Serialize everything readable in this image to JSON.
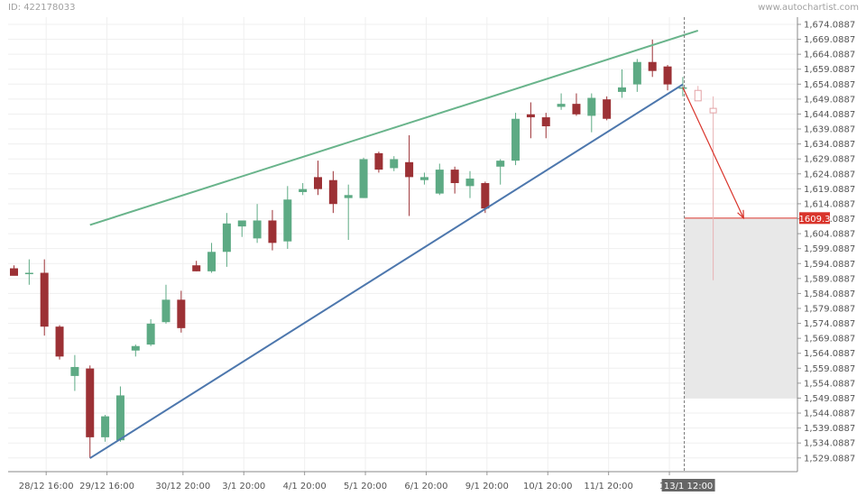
{
  "header": {
    "id_label": "ID: 422178033",
    "site": "www.autochartist.com"
  },
  "colors": {
    "bull": "#5daa84",
    "bear": "#9c3135",
    "resistance": "#69b48b",
    "support": "#4d77ad",
    "forecast": "#d9342b",
    "grid": "#efefef",
    "zone": "#e8e8e8"
  },
  "chart_data": {
    "type": "candlestick",
    "ylim": [
      1524.5,
      1676.5
    ],
    "y_ticks": [
      "1,674.0887",
      "1,669.0887",
      "1,664.0887",
      "1,659.0887",
      "1,654.0887",
      "1,649.0887",
      "1,644.0887",
      "1,639.0887",
      "1,634.0887",
      "1,629.0887",
      "1,624.0887",
      "1,619.0887",
      "1,614.0887",
      "1,609.0887",
      "1,604.0887",
      "1,599.0887",
      "1,594.0887",
      "1,589.0887",
      "1,584.0887",
      "1,579.0887",
      "1,574.0887",
      "1,569.0887",
      "1,564.0887",
      "1,559.0887",
      "1,554.0887",
      "1,549.0887",
      "1,544.0887",
      "1,539.0887",
      "1,534.0887",
      "1,529.0887"
    ],
    "x_ticks": [
      {
        "label": "28/12 16:00",
        "index": 2
      },
      {
        "label": "29/12 16:00",
        "index": 6
      },
      {
        "label": "30/12 20:00",
        "index": 11
      },
      {
        "label": "3/1 20:00",
        "index": 15
      },
      {
        "label": "4/1 20:00",
        "index": 19
      },
      {
        "label": "5/1 20:00",
        "index": 23
      },
      {
        "label": "6/1 20:00",
        "index": 27
      },
      {
        "label": "9/1 20:00",
        "index": 31
      },
      {
        "label": "10/1 20:00",
        "index": 35
      },
      {
        "label": "11/1 20:00",
        "index": 39
      },
      {
        "label": "12/1",
        "index": 43
      }
    ],
    "current_x_label": "13/1 12:00",
    "current_price_label": "1609.3",
    "current_price": 1609.3,
    "candles": [
      {
        "o": 1592.5,
        "h": 1593.5,
        "l": 1590.5,
        "c": 1590.0
      },
      {
        "o": 1591.0,
        "h": 1595.5,
        "l": 1587.0,
        "c": 1591.0
      },
      {
        "o": 1591.0,
        "h": 1595.5,
        "l": 1570.0,
        "c": 1573.0
      },
      {
        "o": 1573.0,
        "h": 1573.5,
        "l": 1562.0,
        "c": 1563.0
      },
      {
        "o": 1556.5,
        "h": 1563.5,
        "l": 1551.5,
        "c": 1559.5
      },
      {
        "o": 1559.0,
        "h": 1560.0,
        "l": 1529.0,
        "c": 1536.0
      },
      {
        "o": 1536.0,
        "h": 1543.5,
        "l": 1534.5,
        "c": 1543.0
      },
      {
        "o": 1535.0,
        "h": 1553.0,
        "l": 1534.5,
        "c": 1550.0
      },
      {
        "o": 1565.0,
        "h": 1567.0,
        "l": 1563.0,
        "c": 1566.5
      },
      {
        "o": 1567.0,
        "h": 1575.5,
        "l": 1566.5,
        "c": 1574.0
      },
      {
        "o": 1574.5,
        "h": 1587.0,
        "l": 1574.0,
        "c": 1582.0
      },
      {
        "o": 1582.0,
        "h": 1585.0,
        "l": 1571.0,
        "c": 1572.5
      },
      {
        "o": 1593.5,
        "h": 1595.0,
        "l": 1591.5,
        "c": 1591.5
      },
      {
        "o": 1591.5,
        "h": 1601.0,
        "l": 1591.0,
        "c": 1598.0
      },
      {
        "o": 1598.0,
        "h": 1611.0,
        "l": 1593.0,
        "c": 1607.5
      },
      {
        "o": 1606.5,
        "h": 1608.0,
        "l": 1603.0,
        "c": 1608.5
      },
      {
        "o": 1602.5,
        "h": 1614.0,
        "l": 1601.0,
        "c": 1608.5
      },
      {
        "o": 1608.5,
        "h": 1612.0,
        "l": 1598.5,
        "c": 1601.0
      },
      {
        "o": 1601.5,
        "h": 1620.0,
        "l": 1599.0,
        "c": 1615.5
      },
      {
        "o": 1618.0,
        "h": 1621.0,
        "l": 1617.0,
        "c": 1619.0
      },
      {
        "o": 1623.0,
        "h": 1628.5,
        "l": 1617.0,
        "c": 1619.0
      },
      {
        "o": 1622.0,
        "h": 1625.0,
        "l": 1611.0,
        "c": 1614.0
      },
      {
        "o": 1616.0,
        "h": 1620.5,
        "l": 1602.0,
        "c": 1617.0
      },
      {
        "o": 1616.0,
        "h": 1629.5,
        "l": 1616.0,
        "c": 1629.0
      },
      {
        "o": 1631.0,
        "h": 1631.5,
        "l": 1624.5,
        "c": 1625.5
      },
      {
        "o": 1626.0,
        "h": 1630.0,
        "l": 1625.0,
        "c": 1629.0
      },
      {
        "o": 1628.0,
        "h": 1637.0,
        "l": 1610.0,
        "c": 1623.0
      },
      {
        "o": 1622.0,
        "h": 1624.5,
        "l": 1620.5,
        "c": 1623.0
      },
      {
        "o": 1617.5,
        "h": 1627.5,
        "l": 1617.0,
        "c": 1625.5
      },
      {
        "o": 1625.5,
        "h": 1626.5,
        "l": 1617.5,
        "c": 1621.0
      },
      {
        "o": 1620.0,
        "h": 1625.0,
        "l": 1616.0,
        "c": 1622.5
      },
      {
        "o": 1621.0,
        "h": 1621.5,
        "l": 1611.0,
        "c": 1612.5
      },
      {
        "o": 1626.5,
        "h": 1629.0,
        "l": 1620.5,
        "c": 1628.5
      },
      {
        "o": 1628.5,
        "h": 1644.5,
        "l": 1627.0,
        "c": 1642.5
      },
      {
        "o": 1644.0,
        "h": 1648.0,
        "l": 1636.0,
        "c": 1643.0
      },
      {
        "o": 1643.0,
        "h": 1644.5,
        "l": 1636.0,
        "c": 1640.0
      },
      {
        "o": 1646.5,
        "h": 1651.0,
        "l": 1645.5,
        "c": 1647.5
      },
      {
        "o": 1647.5,
        "h": 1651.0,
        "l": 1643.5,
        "c": 1644.0
      },
      {
        "o": 1643.5,
        "h": 1651.0,
        "l": 1638.0,
        "c": 1649.5
      },
      {
        "o": 1649.0,
        "h": 1650.0,
        "l": 1642.0,
        "c": 1642.5
      },
      {
        "o": 1651.5,
        "h": 1659.0,
        "l": 1649.5,
        "c": 1653.0
      },
      {
        "o": 1654.0,
        "h": 1662.5,
        "l": 1651.5,
        "c": 1661.5
      },
      {
        "o": 1661.5,
        "h": 1669.0,
        "l": 1656.5,
        "c": 1658.5
      },
      {
        "o": 1660.0,
        "h": 1660.5,
        "l": 1652.0,
        "c": 1654.0
      },
      {
        "o": 1653.0,
        "h": 1656.5,
        "l": 1650.0,
        "c": 1653.0
      },
      {
        "o": 1652.0,
        "h": 1653.5,
        "l": 1648.5,
        "c": 1648.5
      },
      {
        "o": 1646.0,
        "h": 1650.0,
        "l": 1588.5,
        "c": 1644.5
      }
    ],
    "indicator_candles": [
      45,
      46
    ],
    "resistance_line": {
      "start": {
        "index": 5,
        "price": 1607.0
      },
      "end": {
        "index": 45,
        "price": 1672.0
      }
    },
    "support_line": {
      "start": {
        "index": 5,
        "price": 1529.0
      },
      "end": {
        "index": 44,
        "price": 1654.0
      }
    },
    "forecast_arrow": {
      "start": {
        "index": 44,
        "price": 1653.0
      },
      "end": {
        "index": 48,
        "price": 1609.3
      }
    },
    "target_zone": {
      "start_index": 44.1,
      "end_index": 51.5,
      "top": 1609.3,
      "bottom": 1549.0
    }
  }
}
